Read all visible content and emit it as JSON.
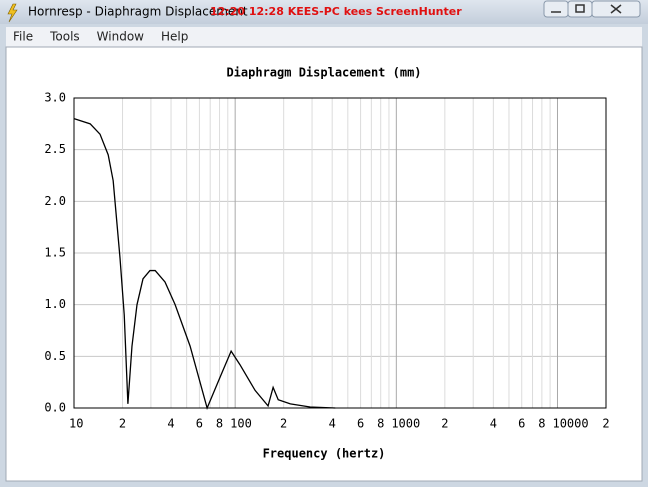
{
  "window": {
    "title": "Hornresp - Diaphragm Displacement",
    "overlay": "12:20 12:28 KEES-PC kees ScreenHunter",
    "menu": [
      "File",
      "Tools",
      "Window",
      "Help"
    ]
  },
  "chart_data": {
    "type": "line",
    "title": "Diaphragm Displacement (mm)",
    "x_label": "Frequency (hertz)",
    "x": [
      10,
      12.6,
      14.5,
      16.3,
      17.5,
      18.2,
      19.3,
      20.5,
      21.6,
      22.9,
      24.6,
      26.8,
      29.6,
      31.9,
      36.7,
      42.4,
      52.5,
      67,
      80.7,
      94.4,
      107,
      133,
      160,
      172,
      185,
      220,
      292,
      418
    ],
    "series": [
      {
        "color": "#000000",
        "values": [
          2.8,
          2.75,
          2.65,
          2.45,
          2.2,
          1.9,
          1.45,
          0.9,
          0.04,
          0.6,
          1.0,
          1.25,
          1.33,
          1.33,
          1.22,
          1.0,
          0.6,
          0.0,
          0.3,
          0.55,
          0.42,
          0.17,
          0.02,
          0.2,
          0.08,
          0.04,
          0.01,
          0.0
        ]
      }
    ],
    "xlim": [
      10,
      20000
    ],
    "xlog": true,
    "xticks": [
      10,
      {
        "value": 20,
        "label": "2"
      },
      {
        "value": 40,
        "label": "4"
      },
      {
        "value": 60,
        "label": "6"
      },
      {
        "value": 80,
        "label": "8"
      },
      100,
      {
        "value": 200,
        "label": "2"
      },
      {
        "value": 400,
        "label": "4"
      },
      {
        "value": 600,
        "label": "6"
      },
      {
        "value": 800,
        "label": "8"
      },
      1000,
      {
        "value": 2000,
        "label": "2"
      },
      {
        "value": 4000,
        "label": "4"
      },
      {
        "value": 6000,
        "label": "6"
      },
      {
        "value": 8000,
        "label": "8"
      },
      10000,
      {
        "value": 20000,
        "label": "2"
      }
    ],
    "xminorticks": [
      30,
      50,
      70,
      90,
      300,
      500,
      700,
      900,
      3000,
      5000,
      7000,
      9000
    ],
    "ylim": [
      0,
      3
    ],
    "yticks": [
      {
        "value": 0,
        "label": "0.0"
      },
      0.5,
      {
        "value": 1,
        "label": "1.0"
      },
      1.5,
      {
        "value": 2,
        "label": "2.0"
      },
      2.5,
      {
        "value": 3,
        "label": "3.0"
      }
    ],
    "grid": true
  }
}
